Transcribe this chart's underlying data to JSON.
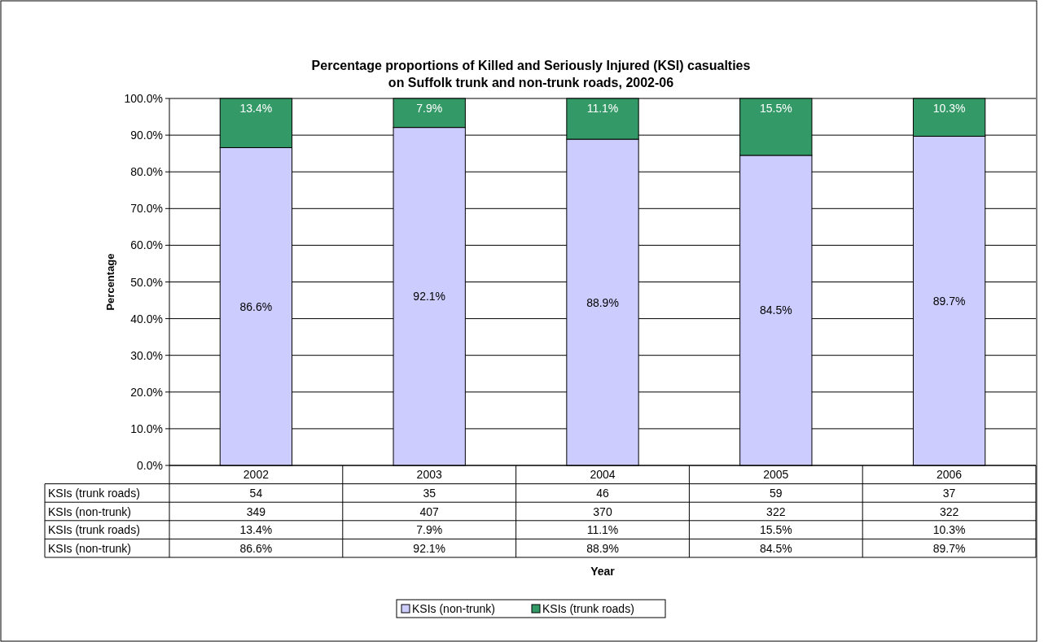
{
  "chart_data": {
    "type": "bar",
    "stacked": true,
    "title": "Percentage proportions of Killed and Seriously Injured (KSI) casualties\non Suffolk trunk and non-trunk roads, 2002-06",
    "ylabel": "Percentage",
    "categories": [
      "2002",
      "2003",
      "2004",
      "2005",
      "2006"
    ],
    "series": [
      {
        "name": "KSIs (non-trunk)",
        "color": "#ccccff",
        "values": [
          86.6,
          92.1,
          88.9,
          84.5,
          89.7
        ],
        "value_labels": [
          "86.6%",
          "92.1%",
          "88.9%",
          "84.5%",
          "89.7%"
        ]
      },
      {
        "name": "KSIs (trunk roads)",
        "color": "#339966",
        "values": [
          13.4,
          7.9,
          11.1,
          15.5,
          10.3
        ],
        "value_labels": [
          "13.4%",
          "7.9%",
          "11.1%",
          "15.5%",
          "10.3%"
        ]
      }
    ],
    "ylim": [
      0,
      100
    ],
    "yticks": [
      {
        "value": 0,
        "label": "0.0%"
      },
      {
        "value": 10,
        "label": "10.0%"
      },
      {
        "value": 20,
        "label": "20.0%"
      },
      {
        "value": 30,
        "label": "30.0%"
      },
      {
        "value": 40,
        "label": "40.0%"
      },
      {
        "value": 50,
        "label": "50.0%"
      },
      {
        "value": 60,
        "label": "60.0%"
      },
      {
        "value": 70,
        "label": "70.0%"
      },
      {
        "value": 80,
        "label": "80.0%"
      },
      {
        "value": 90,
        "label": "90.0%"
      },
      {
        "value": 100,
        "label": "100.0%"
      }
    ],
    "grid": "y",
    "legend": "bottom",
    "annotations": [
      "KSIs (trunk roads)",
      "54",
      "35",
      "46",
      "59",
      "37",
      "KSIs (non-trunk)",
      "349",
      "407",
      "370",
      "322",
      "322",
      "Year"
    ]
  }
}
